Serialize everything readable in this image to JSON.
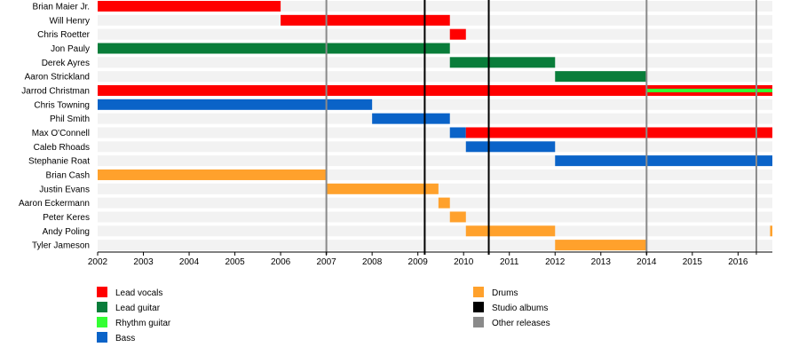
{
  "chart_data": {
    "type": "bar",
    "title": "",
    "xlabel": "",
    "ylabel": "",
    "xlim": [
      2002,
      2016.75
    ],
    "x_ticks": [
      "2002",
      "2003",
      "2004",
      "2005",
      "2006",
      "2007",
      "2008",
      "2009",
      "2010",
      "2011",
      "2012",
      "2013",
      "2014",
      "2015",
      "2016"
    ],
    "grid": true,
    "legend_position": "bottom",
    "members": [
      {
        "name": "Brian Maier Jr.",
        "spans": [
          {
            "role": "Lead vocals",
            "start": 2002.0,
            "end": 2006.0
          }
        ]
      },
      {
        "name": "Will Henry",
        "spans": [
          {
            "role": "Lead vocals",
            "start": 2006.0,
            "end": 2009.7
          }
        ]
      },
      {
        "name": "Chris Roetter",
        "spans": [
          {
            "role": "Lead vocals",
            "start": 2009.7,
            "end": 2010.05
          }
        ]
      },
      {
        "name": "Jon Pauly",
        "spans": [
          {
            "role": "Lead guitar",
            "start": 2002.0,
            "end": 2009.7
          }
        ]
      },
      {
        "name": "Derek Ayres",
        "spans": [
          {
            "role": "Lead guitar",
            "start": 2009.7,
            "end": 2012.0
          }
        ]
      },
      {
        "name": "Aaron Strickland",
        "spans": [
          {
            "role": "Lead guitar",
            "start": 2012.0,
            "end": 2014.0
          }
        ]
      },
      {
        "name": "Jarrod Christman",
        "spans": [
          {
            "role": "Lead vocals",
            "start": 2002.0,
            "end": 2016.75
          },
          {
            "role": "Rhythm guitar",
            "start": 2014.0,
            "end": 2016.75,
            "thin": true
          }
        ]
      },
      {
        "name": "Chris Towning",
        "spans": [
          {
            "role": "Bass",
            "start": 2002.0,
            "end": 2008.0
          }
        ]
      },
      {
        "name": "Phil Smith",
        "spans": [
          {
            "role": "Bass",
            "start": 2008.0,
            "end": 2009.7
          }
        ]
      },
      {
        "name": "Max O'Connell",
        "spans": [
          {
            "role": "Bass",
            "start": 2009.7,
            "end": 2010.05
          },
          {
            "role": "Lead vocals",
            "start": 2010.05,
            "end": 2016.75
          }
        ]
      },
      {
        "name": "Caleb Rhoads",
        "spans": [
          {
            "role": "Bass",
            "start": 2010.05,
            "end": 2012.0
          }
        ]
      },
      {
        "name": "Stephanie Roat",
        "spans": [
          {
            "role": "Bass",
            "start": 2012.0,
            "end": 2016.75
          }
        ]
      },
      {
        "name": "Brian Cash",
        "spans": [
          {
            "role": "Drums",
            "start": 2002.0,
            "end": 2007.0
          }
        ]
      },
      {
        "name": "Justin Evans",
        "spans": [
          {
            "role": "Drums",
            "start": 2007.0,
            "end": 2009.45
          }
        ]
      },
      {
        "name": "Aaron Eckermann",
        "spans": [
          {
            "role": "Drums",
            "start": 2009.45,
            "end": 2009.7
          }
        ]
      },
      {
        "name": "Peter Keres",
        "spans": [
          {
            "role": "Drums",
            "start": 2009.7,
            "end": 2010.05
          }
        ]
      },
      {
        "name": "Andy Poling",
        "spans": [
          {
            "role": "Drums",
            "start": 2010.05,
            "end": 2012.0
          },
          {
            "role": "Drums",
            "start": 2016.7,
            "end": 2016.75
          }
        ]
      },
      {
        "name": "Tyler Jameson",
        "spans": [
          {
            "role": "Drums",
            "start": 2012.0,
            "end": 2014.0
          }
        ]
      }
    ],
    "studio_albums": [
      2009.15,
      2010.55
    ],
    "other_releases": [
      2007.0,
      2014.0,
      2016.4
    ],
    "legend": [
      {
        "label": "Lead vocals",
        "color": "#ff0000"
      },
      {
        "label": "Lead guitar",
        "color": "#097d3a"
      },
      {
        "label": "Rhythm guitar",
        "color": "#33ff33"
      },
      {
        "label": "Bass",
        "color": "#0a63c8"
      },
      {
        "label": "Drums",
        "color": "#ffa12c"
      },
      {
        "label": "Studio albums",
        "color": "#000000"
      },
      {
        "label": "Other releases",
        "color": "#8a8a8a"
      }
    ]
  }
}
